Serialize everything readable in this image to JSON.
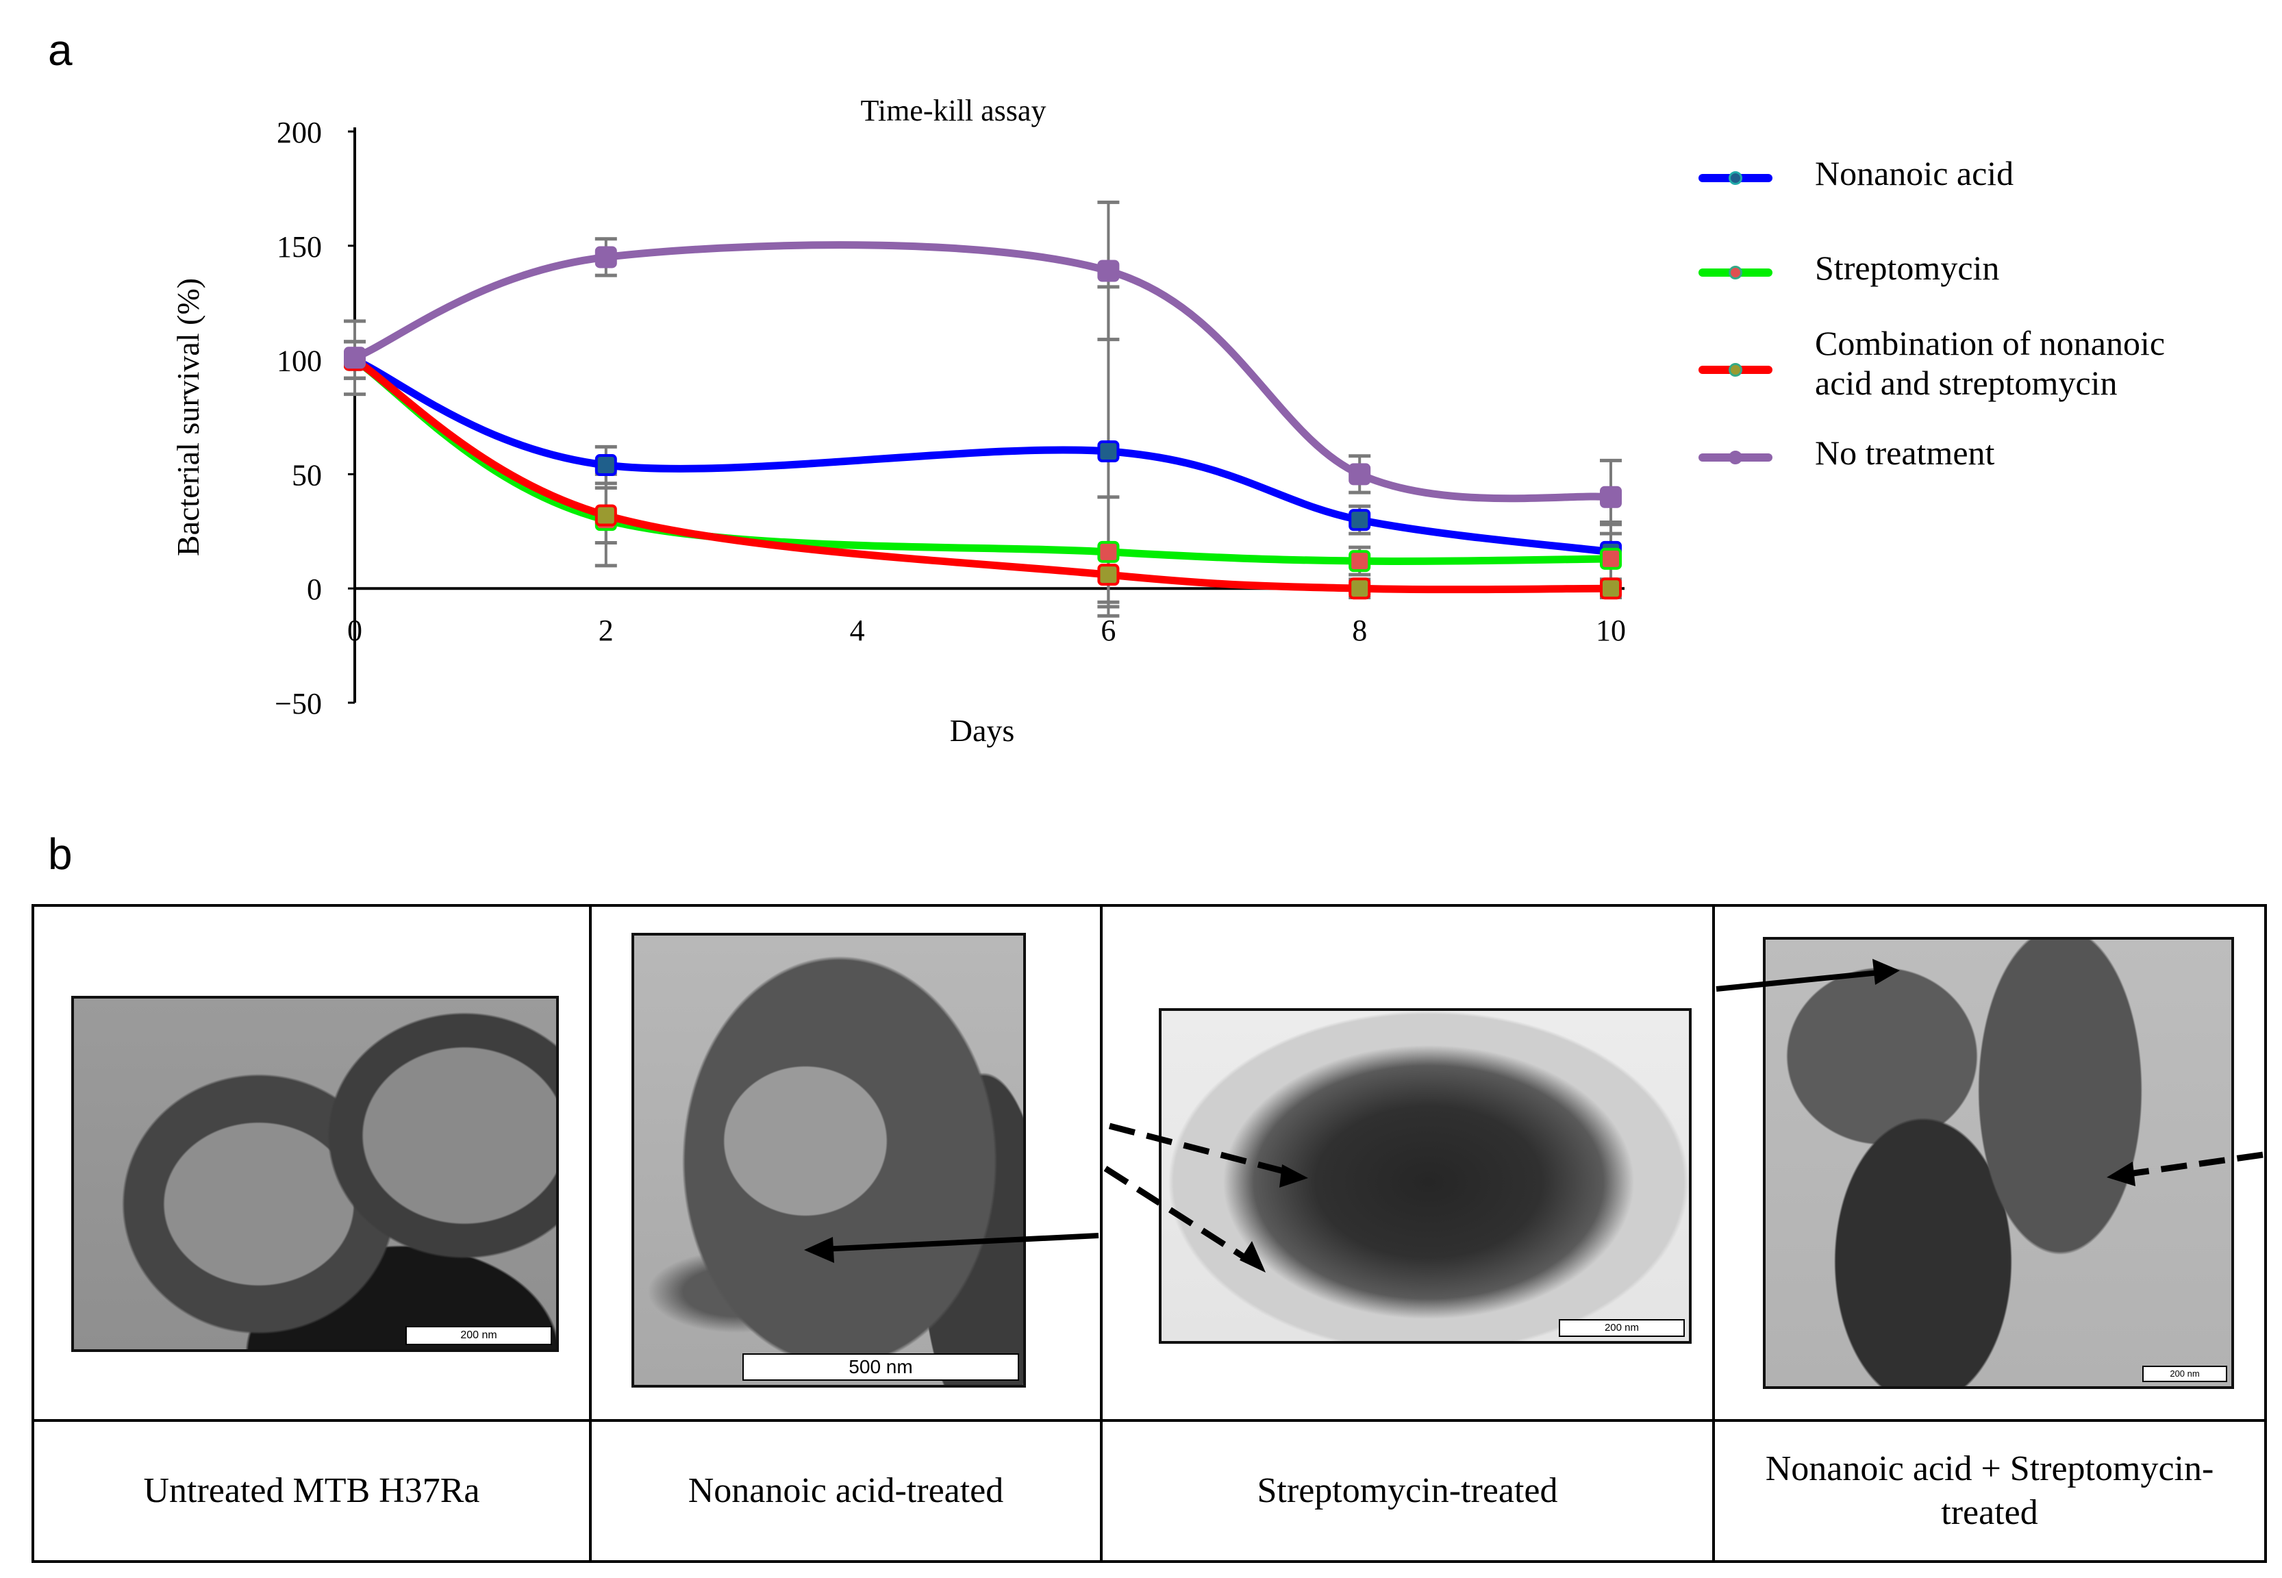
{
  "panels": {
    "a": "a",
    "b": "b"
  },
  "chart_data": {
    "type": "line",
    "title": "Time-kill assay",
    "xlabel": "Days",
    "ylabel": "Bacterial survival (%)",
    "xlim": [
      0,
      10
    ],
    "ylim": [
      -50,
      200
    ],
    "xticks": [
      0,
      2,
      4,
      6,
      8,
      10
    ],
    "yticks": [
      200,
      150,
      100,
      50,
      0,
      -50
    ],
    "x": [
      0,
      2,
      6,
      8,
      10
    ],
    "series": [
      {
        "name": "Nonanoic acid",
        "color": "#0000ff",
        "marker": "#1f5f8b",
        "values": [
          100,
          54,
          60,
          30,
          16
        ],
        "errors": [
          8,
          8,
          72,
          6,
          12
        ]
      },
      {
        "name": "Streptomycin",
        "color": "#00ee00",
        "marker": "#e05050",
        "values": [
          100,
          30,
          16,
          12,
          13
        ],
        "errors": [
          8,
          20,
          24,
          6,
          16
        ]
      },
      {
        "name": "Combination of nonanoic acid and streptomycin",
        "color": "#ff0000",
        "marker": "#9a9a30",
        "values": [
          100,
          32,
          6,
          0,
          0
        ],
        "errors": [
          8,
          12,
          12,
          4,
          4
        ]
      },
      {
        "name": "No treatment",
        "color": "#8e63aa",
        "marker": "#8e63aa",
        "values": [
          101,
          145,
          139,
          50,
          40
        ],
        "errors": [
          16,
          8,
          30,
          8,
          16
        ]
      }
    ],
    "legend_position": "right"
  },
  "legend": {
    "nonanoic": "Nonanoic acid",
    "strep": "Streptomycin",
    "combo_line1": "Combination of nonanoic",
    "combo_line2": "acid and streptomycin",
    "none": "No treatment"
  },
  "tem": {
    "captions": [
      "Untreated MTB H37Ra",
      "Nonanoic acid-treated",
      "Streptomycin-treated",
      "Nonanoic acid + Streptomycin-treated"
    ],
    "caption4_line1": "Nonanoic acid + Streptomycin-",
    "caption4_line2": "treated",
    "scales": [
      "200 nm",
      "500 nm",
      "200 nm",
      "200 nm"
    ]
  }
}
